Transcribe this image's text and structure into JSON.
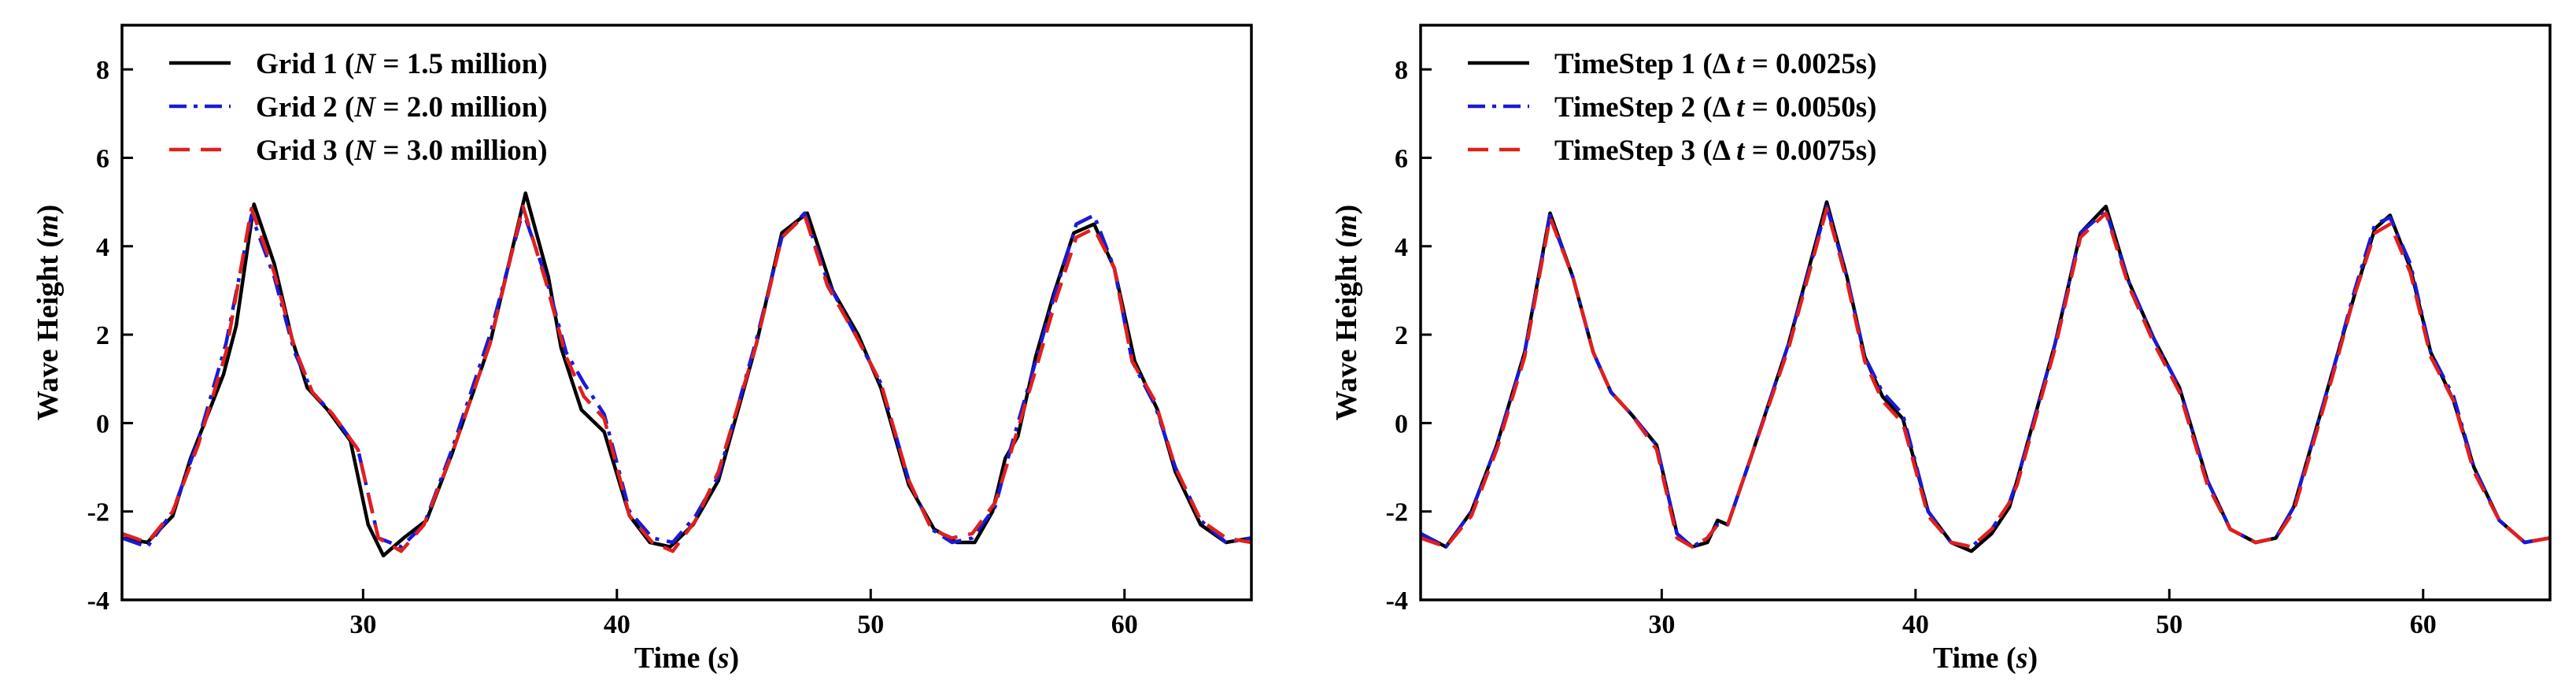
{
  "chart_data": [
    {
      "type": "line",
      "title": "",
      "xlabel": {
        "main": "Time (",
        "italic": "s",
        "end": ")"
      },
      "ylabel": {
        "main": "Wave Height (",
        "italic": "m",
        "end": ")"
      },
      "xlim": [
        20.5,
        65
      ],
      "ylim": [
        -4,
        9
      ],
      "xticks": [
        30,
        40,
        50,
        60
      ],
      "yticks": [
        -4,
        -2,
        0,
        2,
        4,
        6,
        8
      ],
      "grid": false,
      "legend_position": "top-left",
      "series": [
        {
          "name": "Grid 1 (N = 1.5 million)",
          "legend": {
            "pre": "Grid 1 (",
            "italic": "N",
            "post": " = 1.5 million)"
          },
          "color": "#000000",
          "dash": "solid",
          "x": [
            20.5,
            21.5,
            22.5,
            23.2,
            24.5,
            25.0,
            25.7,
            26.5,
            27.2,
            27.8,
            28.6,
            29.5,
            30.2,
            30.8,
            31.6,
            32.5,
            33.5,
            35.0,
            36.4,
            37.3,
            37.8,
            38.6,
            39.5,
            40.5,
            41.3,
            42.1,
            43.0,
            44.0,
            45.5,
            46.5,
            47.5,
            48.5,
            49.5,
            50.4,
            51.5,
            52.5,
            53.4,
            54.1,
            54.8,
            55.3,
            55.8,
            56.5,
            57.2,
            58.0,
            58.8,
            59.6,
            60.4,
            61.3,
            62.0,
            63.0,
            64.0,
            65.0
          ],
          "y": [
            -2.6,
            -2.7,
            -2.1,
            -0.8,
            1.1,
            2.2,
            4.95,
            3.6,
            1.9,
            0.8,
            0.3,
            -0.4,
            -2.3,
            -3.0,
            -2.6,
            -2.2,
            -0.7,
            1.8,
            5.2,
            3.3,
            1.7,
            0.3,
            -0.2,
            -2.1,
            -2.7,
            -2.8,
            -2.3,
            -1.3,
            1.8,
            4.3,
            4.75,
            3.0,
            2.0,
            0.8,
            -1.4,
            -2.4,
            -2.7,
            -2.7,
            -2.0,
            -0.8,
            -0.3,
            1.5,
            2.9,
            4.3,
            4.5,
            3.5,
            1.4,
            0.3,
            -1.1,
            -2.3,
            -2.7,
            -2.6
          ]
        },
        {
          "name": "Grid 2 (N = 2.0 million)",
          "legend": {
            "pre": "Grid 2 (",
            "italic": "N",
            "post": " = 2.0 million)"
          },
          "color": "#1a1ad4",
          "dash": "dashdot",
          "x": [
            20.5,
            21.5,
            22.5,
            23.5,
            24.6,
            25.6,
            26.5,
            27.3,
            28.0,
            28.8,
            29.8,
            30.6,
            31.5,
            32.4,
            33.5,
            35.0,
            36.3,
            37.2,
            38.0,
            38.7,
            39.5,
            40.5,
            41.4,
            42.2,
            43.1,
            44.0,
            45.5,
            46.5,
            47.4,
            48.3,
            49.4,
            50.4,
            51.5,
            52.4,
            53.2,
            54.0,
            54.9,
            55.5,
            56.5,
            57.3,
            58.1,
            58.8,
            59.6,
            60.3,
            61.2,
            62.0,
            63.0,
            64.0,
            65.0
          ],
          "y": [
            -2.6,
            -2.8,
            -2.0,
            -0.4,
            1.8,
            4.7,
            3.3,
            1.6,
            0.7,
            0.2,
            -0.6,
            -2.6,
            -2.8,
            -2.3,
            -0.6,
            2.0,
            4.8,
            3.3,
            1.6,
            0.9,
            0.2,
            -2.0,
            -2.6,
            -2.7,
            -2.1,
            -1.2,
            1.9,
            4.2,
            4.75,
            3.2,
            2.0,
            0.9,
            -1.3,
            -2.4,
            -2.7,
            -2.6,
            -1.9,
            -0.6,
            1.4,
            3.0,
            4.5,
            4.7,
            3.5,
            1.4,
            0.4,
            -1.0,
            -2.2,
            -2.7,
            -2.6
          ]
        },
        {
          "name": "Grid 3 (N = 3.0 million)",
          "legend": {
            "pre": "Grid 3 (",
            "italic": "N",
            "post": " = 3.0 million)"
          },
          "color": "#e0201e",
          "dash": "dash",
          "x": [
            20.5,
            21.5,
            22.5,
            23.5,
            24.6,
            25.6,
            26.5,
            27.3,
            28.0,
            28.8,
            29.8,
            30.6,
            31.5,
            32.4,
            33.5,
            35.0,
            36.3,
            37.2,
            38.0,
            38.7,
            39.5,
            40.5,
            41.4,
            42.2,
            43.1,
            44.0,
            45.5,
            46.5,
            47.4,
            48.3,
            49.4,
            50.4,
            51.5,
            52.4,
            53.2,
            54.0,
            54.9,
            55.5,
            56.5,
            57.3,
            58.1,
            58.8,
            59.6,
            60.3,
            61.2,
            62.0,
            63.0,
            64.0,
            65.0
          ],
          "y": [
            -2.5,
            -2.7,
            -2.0,
            -0.5,
            1.6,
            4.85,
            3.4,
            1.7,
            0.7,
            0.2,
            -0.6,
            -2.6,
            -2.9,
            -2.3,
            -0.7,
            1.8,
            4.9,
            3.2,
            1.5,
            0.6,
            0.1,
            -2.1,
            -2.7,
            -2.9,
            -2.2,
            -1.1,
            1.8,
            4.2,
            4.7,
            3.1,
            2.0,
            0.9,
            -1.3,
            -2.4,
            -2.6,
            -2.5,
            -1.8,
            -0.7,
            1.2,
            2.8,
            4.2,
            4.4,
            3.5,
            1.4,
            0.5,
            -1.0,
            -2.2,
            -2.6,
            -2.7
          ]
        }
      ]
    },
    {
      "type": "line",
      "title": "",
      "xlabel": {
        "main": "Time (",
        "italic": "s",
        "end": ")"
      },
      "ylabel": {
        "main": "Wave Height (",
        "italic": "m",
        "end": ")"
      },
      "xlim": [
        20.5,
        65
      ],
      "ylim": [
        -4,
        9
      ],
      "xticks": [
        30,
        40,
        50,
        60
      ],
      "yticks": [
        -4,
        -2,
        0,
        2,
        4,
        6,
        8
      ],
      "grid": false,
      "legend_position": "top-left",
      "series": [
        {
          "name": "TimeStep 1 (Δ t = 0.0025s)",
          "legend": {
            "pre": "TimeStep 1 (Δ ",
            "italic": "t",
            "post": " = 0.0025s)"
          },
          "color": "#000000",
          "dash": "solid",
          "x": [
            20.5,
            21.5,
            22.5,
            23.5,
            24.6,
            25.6,
            26.5,
            27.3,
            28.0,
            28.8,
            29.8,
            30.6,
            31.2,
            31.8,
            32.2,
            32.6,
            33.5,
            35.0,
            36.5,
            37.3,
            38.0,
            38.7,
            39.5,
            40.5,
            41.4,
            42.2,
            43.0,
            43.7,
            44.0,
            45.5,
            46.5,
            47.5,
            48.4,
            49.4,
            50.4,
            51.5,
            52.4,
            53.4,
            54.2,
            54.9,
            55.5,
            56.5,
            57.3,
            58.1,
            58.7,
            59.5,
            60.3,
            61.2,
            62.0,
            63.0,
            64.0,
            65.0
          ],
          "y": [
            -2.5,
            -2.8,
            -2.0,
            -0.5,
            1.6,
            4.75,
            3.3,
            1.6,
            0.7,
            0.2,
            -0.5,
            -2.5,
            -2.8,
            -2.7,
            -2.2,
            -2.3,
            -0.8,
            1.8,
            5.0,
            3.3,
            1.5,
            0.6,
            0.1,
            -2.0,
            -2.7,
            -2.9,
            -2.5,
            -1.9,
            -1.3,
            1.8,
            4.3,
            4.9,
            3.2,
            1.9,
            0.8,
            -1.3,
            -2.4,
            -2.7,
            -2.6,
            -1.9,
            -0.7,
            1.3,
            2.9,
            4.4,
            4.7,
            3.5,
            1.6,
            0.5,
            -1.0,
            -2.2,
            -2.7,
            -2.6
          ]
        },
        {
          "name": "TimeStep 2 (Δ t = 0.0050s)",
          "legend": {
            "pre": "TimeStep 2 (Δ ",
            "italic": "t",
            "post": " = 0.0050s)"
          },
          "color": "#1a1ad4",
          "dash": "dashdot",
          "x": [
            20.5,
            21.5,
            22.5,
            23.5,
            24.6,
            25.6,
            26.5,
            27.3,
            28.0,
            28.8,
            29.8,
            30.6,
            31.2,
            31.8,
            32.2,
            32.6,
            33.5,
            35.0,
            36.5,
            37.3,
            38.0,
            38.7,
            39.5,
            40.5,
            41.4,
            42.2,
            43.0,
            43.7,
            44.0,
            45.5,
            46.5,
            47.5,
            48.4,
            49.4,
            50.4,
            51.5,
            52.4,
            53.4,
            54.2,
            54.9,
            55.5,
            56.5,
            57.3,
            58.1,
            58.7,
            59.5,
            60.3,
            61.2,
            62.0,
            63.0,
            64.0,
            65.0
          ],
          "y": [
            -2.5,
            -2.8,
            -2.0,
            -0.5,
            1.6,
            4.7,
            3.3,
            1.6,
            0.7,
            0.2,
            -0.5,
            -2.5,
            -2.8,
            -2.6,
            -2.3,
            -2.3,
            -0.8,
            1.8,
            4.9,
            3.3,
            1.5,
            0.7,
            0.2,
            -2.0,
            -2.7,
            -2.8,
            -2.4,
            -1.8,
            -1.3,
            1.8,
            4.3,
            4.8,
            3.2,
            1.9,
            0.8,
            -1.3,
            -2.4,
            -2.7,
            -2.6,
            -1.9,
            -0.7,
            1.3,
            3.0,
            4.5,
            4.65,
            3.6,
            1.6,
            0.6,
            -1.0,
            -2.2,
            -2.7,
            -2.6
          ]
        },
        {
          "name": "TimeStep 3 (Δ t = 0.0075s)",
          "legend": {
            "pre": "TimeStep 3 (Δ ",
            "italic": "t",
            "post": " = 0.0075s)"
          },
          "color": "#e0201e",
          "dash": "dash",
          "x": [
            20.5,
            21.5,
            22.5,
            23.5,
            24.6,
            25.6,
            26.5,
            27.3,
            28.0,
            28.8,
            29.8,
            30.6,
            31.2,
            31.8,
            32.2,
            32.6,
            33.5,
            35.0,
            36.5,
            37.3,
            38.0,
            38.7,
            39.5,
            40.5,
            41.4,
            42.2,
            43.0,
            43.7,
            44.0,
            45.5,
            46.5,
            47.5,
            48.4,
            49.4,
            50.4,
            51.5,
            52.4,
            53.4,
            54.2,
            54.9,
            55.5,
            56.5,
            57.3,
            58.1,
            58.7,
            59.5,
            60.3,
            61.2,
            62.0,
            63.0,
            64.0,
            65.0
          ],
          "y": [
            -2.6,
            -2.8,
            -2.1,
            -0.6,
            1.5,
            4.65,
            3.3,
            1.6,
            0.7,
            0.2,
            -0.6,
            -2.6,
            -2.8,
            -2.6,
            -2.3,
            -2.3,
            -0.8,
            1.7,
            4.85,
            3.2,
            1.4,
            0.5,
            0.0,
            -2.1,
            -2.7,
            -2.8,
            -2.4,
            -1.8,
            -1.4,
            1.7,
            4.2,
            4.75,
            3.1,
            1.8,
            0.7,
            -1.4,
            -2.4,
            -2.7,
            -2.6,
            -2.0,
            -0.8,
            1.2,
            2.9,
            4.3,
            4.5,
            3.4,
            1.5,
            0.5,
            -1.1,
            -2.2,
            -2.7,
            -2.6
          ]
        }
      ]
    }
  ]
}
